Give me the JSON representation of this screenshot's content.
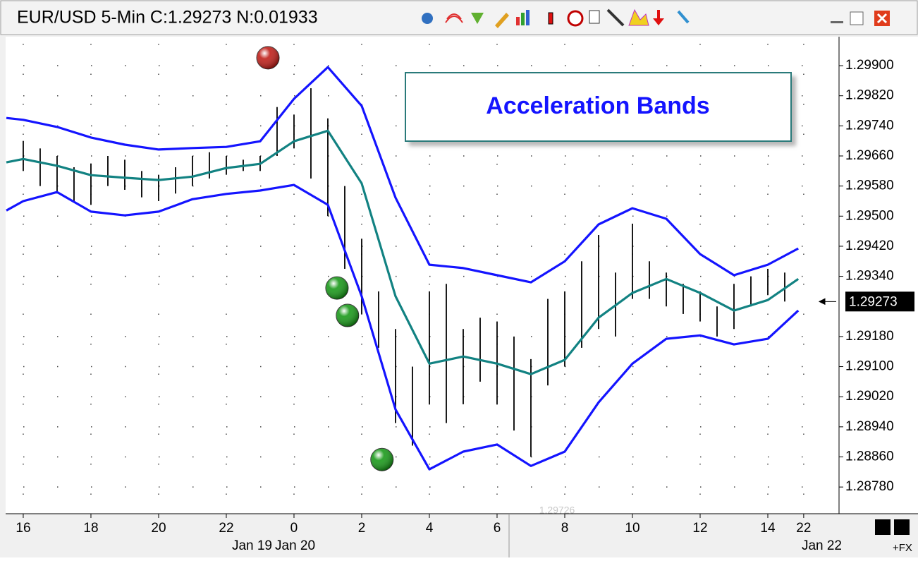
{
  "chart_data": {
    "type": "line",
    "title": "EUR/USD 5-Min C:1.29273 N:0.01933",
    "annotation": "Acceleration Bands",
    "x": [
      -0.5,
      0,
      1,
      2,
      3,
      4,
      5,
      6,
      7,
      8,
      9,
      10,
      11,
      12,
      13,
      14,
      15,
      16,
      17,
      18,
      19,
      20,
      21,
      22,
      22.9
    ],
    "series": [
      {
        "color": "#1414ff",
        "values": [
          1.29761,
          1.29756,
          1.29737,
          1.29709,
          1.2969,
          1.29677,
          1.29681,
          1.29684,
          1.29699,
          1.29812,
          1.29896,
          1.29793,
          1.29549,
          1.29371,
          1.29362,
          1.29343,
          1.29324,
          1.2938,
          1.29478,
          1.29521,
          1.29493,
          1.29399,
          1.29343,
          1.29371,
          1.29414
        ]
      },
      {
        "color": "#128282",
        "values": [
          1.29643,
          1.29652,
          1.29634,
          1.29609,
          1.29602,
          1.29596,
          1.29605,
          1.29628,
          1.29639,
          1.29699,
          1.29727,
          1.29587,
          1.29287,
          1.29108,
          1.29127,
          1.29108,
          1.2908,
          1.29118,
          1.2923,
          1.29296,
          1.29333,
          1.29296,
          1.29249,
          1.29277,
          1.29333
        ]
      },
      {
        "color": "#1414ff",
        "values": [
          1.29515,
          1.2954,
          1.29564,
          1.29512,
          1.29502,
          1.29512,
          1.29545,
          1.29559,
          1.29568,
          1.29583,
          1.2953,
          1.29287,
          1.28986,
          1.28827,
          1.28874,
          1.28893,
          1.28836,
          1.28874,
          1.29005,
          1.29108,
          1.29174,
          1.29183,
          1.29159,
          1.29174,
          1.29249
        ]
      }
    ],
    "bars": {
      "color": "#000000",
      "x": [
        0,
        0.5,
        1,
        1.5,
        2,
        2.5,
        3,
        3.5,
        4,
        4.5,
        5,
        5.5,
        6,
        6.5,
        7,
        7.5,
        8,
        8.5,
        9,
        9.5,
        10,
        10.5,
        11,
        11.5,
        12,
        12.5,
        13,
        13.5,
        14,
        14.5,
        15,
        15.5,
        16,
        16.5,
        17,
        17.5,
        18,
        18.5,
        19,
        19.5,
        20,
        20.5,
        21,
        21.5,
        22,
        22.5
      ],
      "high": [
        1.297,
        1.2968,
        1.2966,
        1.2963,
        1.2964,
        1.2966,
        1.2965,
        1.2962,
        1.2961,
        1.2963,
        1.2966,
        1.2967,
        1.2966,
        1.2965,
        1.2966,
        1.2979,
        1.2977,
        1.2984,
        1.2976,
        1.2958,
        1.2944,
        1.293,
        1.292,
        1.291,
        1.293,
        1.2932,
        1.292,
        1.2923,
        1.2922,
        1.2918,
        1.2912,
        1.2928,
        1.293,
        1.2938,
        1.2945,
        1.2935,
        1.2948,
        1.2938,
        1.2935,
        1.2932,
        1.293,
        1.2926,
        1.2932,
        1.2934,
        1.2936,
        1.2935
      ],
      "low": [
        1.2962,
        1.2958,
        1.2956,
        1.2954,
        1.2953,
        1.2958,
        1.2957,
        1.2955,
        1.2954,
        1.2956,
        1.2958,
        1.296,
        1.2961,
        1.2962,
        1.2962,
        1.2966,
        1.2968,
        1.296,
        1.295,
        1.2936,
        1.2924,
        1.2915,
        1.2895,
        1.2889,
        1.29,
        1.2895,
        1.29,
        1.2906,
        1.29,
        1.2893,
        1.2886,
        1.2905,
        1.291,
        1.2915,
        1.292,
        1.2918,
        1.2928,
        1.2928,
        1.2926,
        1.2924,
        1.2922,
        1.2918,
        1.292,
        1.2926,
        1.2929,
        1.29273
      ]
    },
    "signals": [
      {
        "x": 7.23,
        "y": 1.29921,
        "color": "#c0201a"
      },
      {
        "x": 9.27,
        "y": 1.29309,
        "color": "#1a9a1a"
      },
      {
        "x": 9.58,
        "y": 1.29236,
        "color": "#1a9a1a"
      },
      {
        "x": 10.6,
        "y": 1.28853,
        "color": "#1a9a1a"
      }
    ],
    "last_price": {
      "value": 1.29273,
      "label": "1.29273"
    },
    "crosshair_label": "1.29726",
    "corner_label": "+FX",
    "date_labels": [
      "Jan 19",
      "Jan 20",
      "Jan 22"
    ],
    "xlim": [
      -0.52,
      24
    ],
    "xticks": [
      {
        "value": 0,
        "label": "16"
      },
      {
        "value": 2,
        "label": "18"
      },
      {
        "value": 4,
        "label": "20"
      },
      {
        "value": 6,
        "label": "22"
      },
      {
        "value": 8,
        "label": "0"
      },
      {
        "value": 10,
        "label": "2"
      },
      {
        "value": 12,
        "label": "4"
      },
      {
        "value": 14,
        "label": "6"
      },
      {
        "value": 16,
        "label": "8"
      },
      {
        "value": 18,
        "label": "10"
      },
      {
        "value": 20,
        "label": "12"
      },
      {
        "value": 22,
        "label": "14"
      },
      {
        "value": 23.06,
        "label": "22"
      }
    ],
    "ylim": [
      1.28709,
      1.29977
    ],
    "yticks": [
      {
        "value": 1.299,
        "label": "1.29900"
      },
      {
        "value": 1.2982,
        "label": "1.29820"
      },
      {
        "value": 1.2974,
        "label": "1.29740"
      },
      {
        "value": 1.2966,
        "label": "1.29660"
      },
      {
        "value": 1.2958,
        "label": "1.29580"
      },
      {
        "value": 1.295,
        "label": "1.29500"
      },
      {
        "value": 1.2942,
        "label": "1.29420"
      },
      {
        "value": 1.2934,
        "label": "1.29340"
      },
      {
        "value": 1.2918,
        "label": "1.29180"
      },
      {
        "value": 1.291,
        "label": "1.29100"
      },
      {
        "value": 1.2902,
        "label": "1.29020"
      },
      {
        "value": 1.2894,
        "label": "1.28940"
      },
      {
        "value": 1.2886,
        "label": "1.28860"
      },
      {
        "value": 1.2878,
        "label": "1.28780"
      }
    ],
    "grid": true
  }
}
